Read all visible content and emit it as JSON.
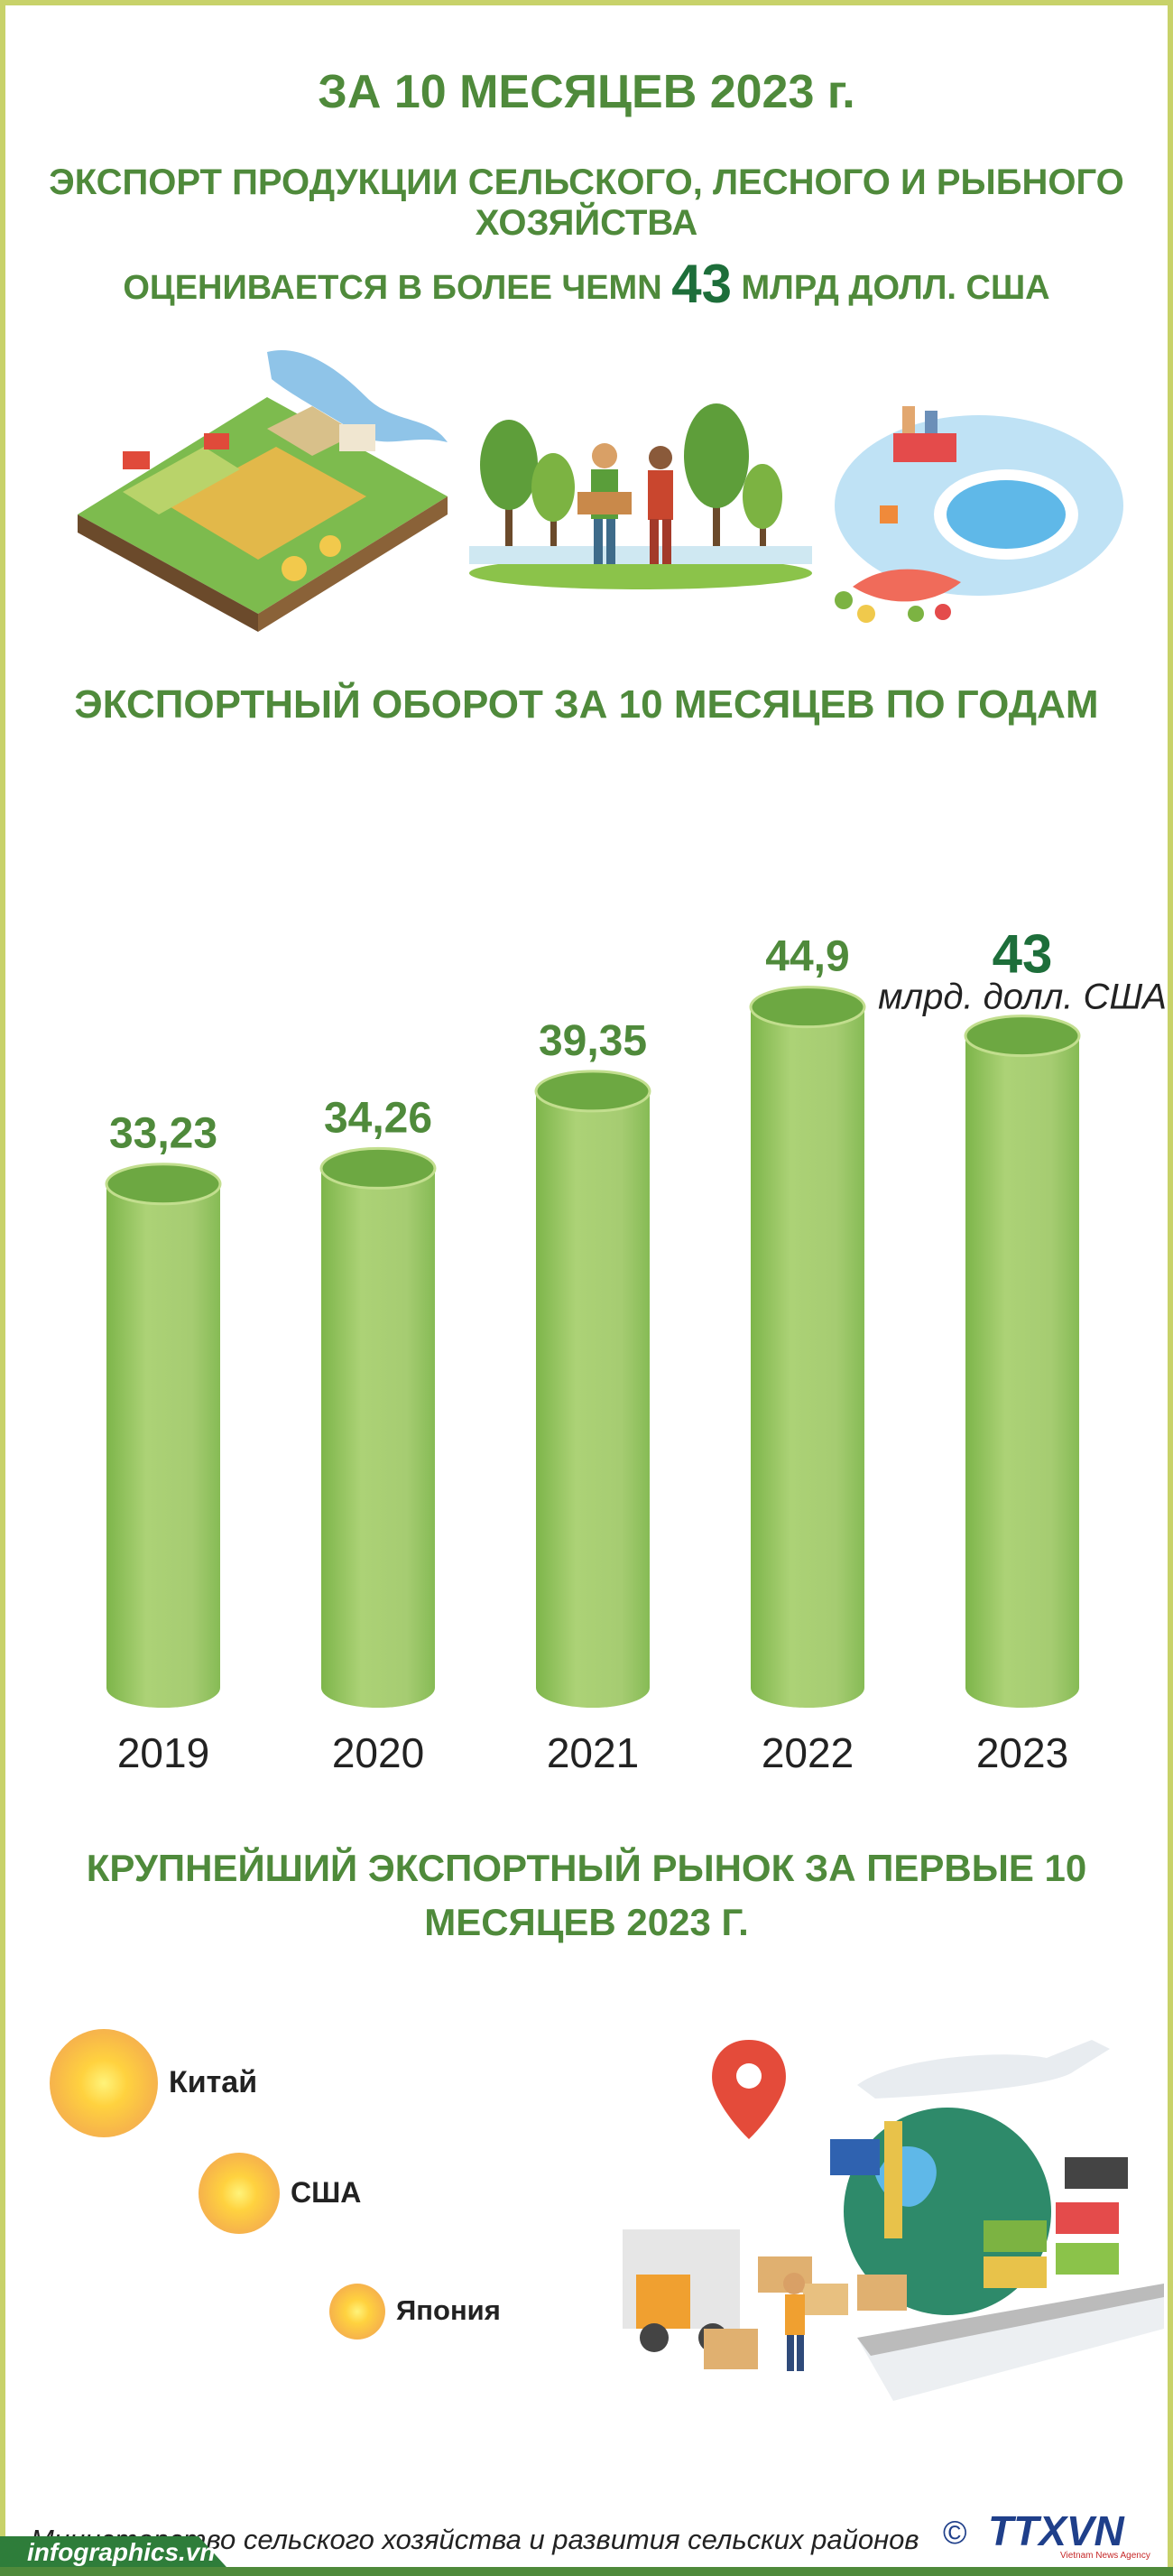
{
  "header": {
    "line1": "ЗА 10 МЕСЯЦЕВ 2023 г.",
    "line2": "ЭКСПОРТ ПРОДУКЦИИ СЕЛЬСКОГО, ЛЕСНОГО И РЫБНОГО ХОЗЯЙСТВА",
    "line3_before": "ОЦЕНИВАЕТСЯ В БОЛЕЕ ЧЕМN",
    "line3_value": "43",
    "line3_after": "МЛРД ДОЛЛ. США"
  },
  "chart_data": {
    "type": "bar",
    "title": "ЭКСПОРТНЫЙ ОБОРОТ ЗА 10 МЕСЯЦЕВ ПО ГОДАМ",
    "categories": [
      "2019",
      "2020",
      "2021",
      "2022",
      "2023"
    ],
    "values": [
      33.23,
      34.26,
      39.35,
      44.9,
      43
    ],
    "value_labels": [
      "33,23",
      "34,26",
      "39,35",
      "44,9",
      "43"
    ],
    "unit": "млрд. долл. США",
    "colors": {
      "bar": "#a6cc72",
      "bar_top": "#6da842",
      "label": "#4f8a3b",
      "highlight": "#1d6e3a"
    }
  },
  "markets": {
    "title": "КРУПНЕЙШИЙ ЭКСПОРТНЫЙ РЫНОК ЗА ПЕРВЫЕ 10 МЕСЯЦЕВ 2023 Г.",
    "items": [
      {
        "name": "Китай",
        "rank": 1
      },
      {
        "name": "США",
        "rank": 2
      },
      {
        "name": "Япония",
        "rank": 3
      }
    ]
  },
  "footer": {
    "source": "Министерство сельского хозяйства и развития сельских районов",
    "site": "infographics.vn",
    "copyright": "©",
    "logo_text": "TTXVN",
    "logo_subtext": "Vietnam News Agency"
  },
  "icons": [
    "farm-illustration-icon",
    "farmers-illustration-icon",
    "fish-farm-illustration-icon",
    "logistics-illustration-icon"
  ]
}
